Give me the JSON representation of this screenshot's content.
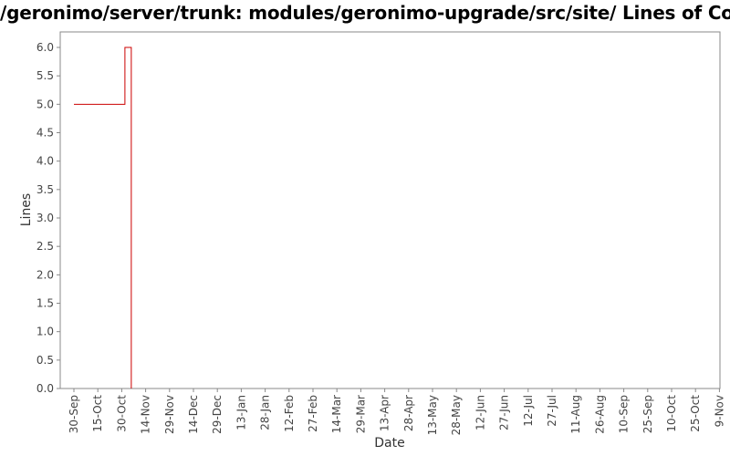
{
  "chart_data": {
    "type": "line",
    "step": true,
    "title": "/geronimo/server/trunk: modules/geronimo-upgrade/src/site/ Lines of Code",
    "xlabel": "Date",
    "ylabel": "Lines",
    "ylim": [
      0,
      6.3
    ],
    "yticks": [
      "0.0",
      "0.5",
      "1.0",
      "1.5",
      "2.0",
      "2.5",
      "3.0",
      "3.5",
      "4.0",
      "4.5",
      "5.0",
      "5.5",
      "6.0"
    ],
    "xticks": [
      "30-Sep",
      "15-Oct",
      "30-Oct",
      "14-Nov",
      "29-Nov",
      "14-Dec",
      "29-Dec",
      "13-Jan",
      "28-Jan",
      "12-Feb",
      "27-Feb",
      "14-Mar",
      "29-Mar",
      "13-Apr",
      "28-Apr",
      "13-May",
      "28-May",
      "12-Jun",
      "27-Jun",
      "12-Jul",
      "27-Jul",
      "11-Aug",
      "26-Aug",
      "10-Sep",
      "25-Sep",
      "10-Oct",
      "25-Oct",
      "9-Nov"
    ],
    "x_tick_step_days": 15,
    "grid": false,
    "legend": "none",
    "series_color": "#cc0000",
    "series": [
      {
        "points": [
          {
            "x": "30-Sep",
            "y": 5
          },
          {
            "x": "1-Nov",
            "y": 6
          },
          {
            "x": "5-Nov",
            "y": 0
          }
        ]
      }
    ]
  }
}
